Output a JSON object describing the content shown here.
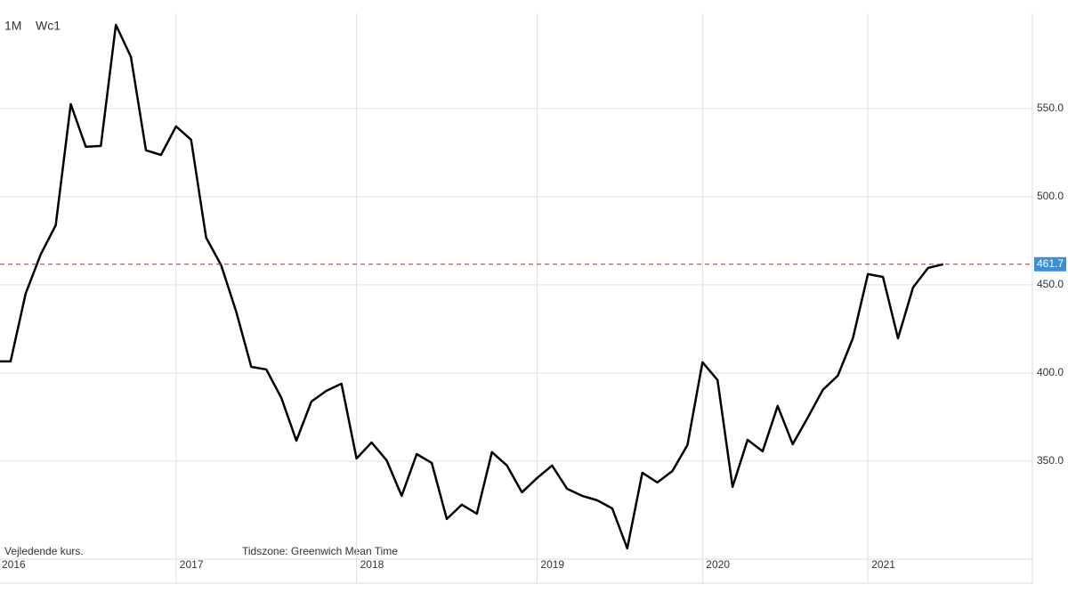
{
  "chart_data": {
    "type": "line",
    "annotations": [
      "1M",
      "Wc1",
      "Vejledende kurs.",
      "Tidszone: Greenwich Mean Time"
    ],
    "categories": [
      "2016",
      null,
      null,
      null,
      null,
      null,
      null,
      null,
      null,
      null,
      null,
      null,
      "2017",
      null,
      null,
      null,
      null,
      null,
      null,
      null,
      null,
      null,
      null,
      null,
      "2018",
      null,
      null,
      null,
      null,
      null,
      null,
      null,
      null,
      null,
      null,
      null,
      "2019",
      null,
      null,
      null,
      null,
      null,
      null,
      null,
      null,
      null,
      null,
      "2020",
      null,
      null,
      null,
      null,
      null,
      null,
      null,
      null,
      null,
      null,
      "2021",
      null,
      null,
      null,
      null,
      null
    ],
    "series": [
      {
        "name": "Wc1",
        "color": "#000000",
        "values": [
          406.6,
          406.6,
          445.0,
          467.2,
          483.8,
          552.5,
          528.3,
          528.8,
          597.5,
          579.3,
          526.3,
          523.7,
          539.9,
          532.3,
          476.8,
          461.1,
          434.8,
          403.5,
          402.0,
          385.9,
          361.6,
          383.8,
          389.9,
          393.9,
          351.5,
          360.6,
          350.5,
          330.3,
          354.0,
          349.0,
          317.2,
          325.3,
          320.2,
          355.1,
          347.5,
          332.3,
          340.4,
          347.5,
          334.3,
          330.3,
          327.8,
          323.2,
          300.5,
          343.4,
          337.9,
          344.4,
          359.1,
          406.1,
          396.0,
          335.4,
          362.1,
          355.6,
          381.3,
          359.6,
          374.7,
          390.4,
          398.5,
          419.7,
          456.1,
          454.5,
          419.7,
          448.5,
          459.6,
          461.7
        ]
      }
    ],
    "ylim": [
      294.4,
      604
    ],
    "yticks": [
      {
        "value": 350,
        "label": "350.0"
      },
      {
        "value": 400,
        "label": "400.0"
      },
      {
        "value": 450,
        "label": "450.0"
      },
      {
        "value": 500,
        "label": "500.0"
      },
      {
        "value": 550,
        "label": "550.0"
      }
    ],
    "grid": true,
    "last_value_color": "#3d8fd1",
    "last_value_line_color": "#b03030"
  }
}
